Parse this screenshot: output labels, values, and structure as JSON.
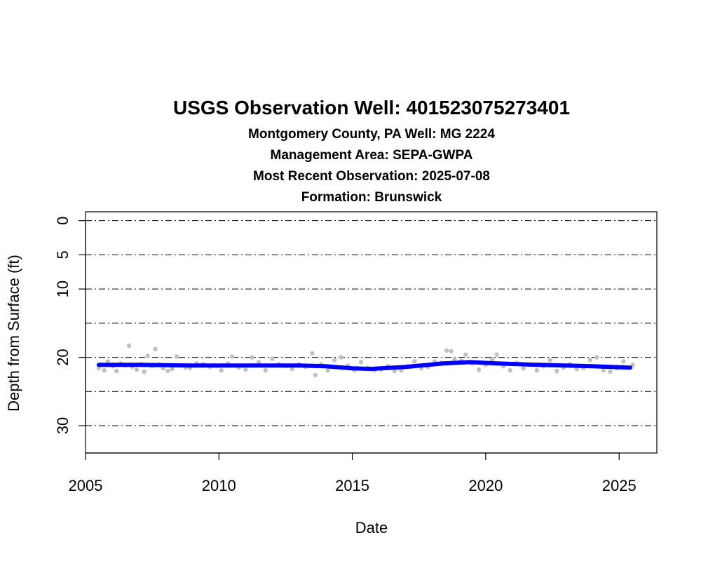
{
  "chart_data": {
    "type": "scatter",
    "title": "USGS Observation Well:  401523075273401",
    "subtitles": [
      "Montgomery County, PA   Well: MG 2224",
      "Management Area: SEPA-GWPA",
      "Most Recent Observation: 2025-07-08",
      "Formation: Brunswick"
    ],
    "xlabel": "Date",
    "ylabel": "Depth from Surface (ft)",
    "x_axis_type": "date",
    "xlim": [
      "2005-01-01",
      "2026-06-01"
    ],
    "x_ticks": [
      {
        "value": "2005-01-01",
        "label": "2005"
      },
      {
        "value": "2010-01-01",
        "label": "2010"
      },
      {
        "value": "2015-01-01",
        "label": "2015"
      },
      {
        "value": "2020-01-01",
        "label": "2020"
      },
      {
        "value": "2025-01-01",
        "label": "2025"
      }
    ],
    "ylim": [
      -1.3,
      34
    ],
    "y_reversed": true,
    "y_ticks": [
      {
        "value": 0,
        "label": "0"
      },
      {
        "value": 5,
        "label": "5"
      },
      {
        "value": 10,
        "label": "10"
      },
      {
        "value": 20,
        "label": "20"
      },
      {
        "value": 30,
        "label": "30"
      }
    ],
    "gridlines_y": [
      0,
      5,
      10,
      15,
      20,
      25,
      30
    ],
    "grid_style": "dash-dot horizontal",
    "series": [
      {
        "style": "points",
        "color": "#c0c0c0",
        "points": [
          [
            "2005-07-01",
            21.6
          ],
          [
            "2005-09-15",
            21.9
          ],
          [
            "2005-11-01",
            20.6
          ],
          [
            "2006-01-10",
            21.3
          ],
          [
            "2006-03-01",
            22.0
          ],
          [
            "2006-05-01",
            20.9
          ],
          [
            "2006-07-01",
            21.2
          ],
          [
            "2006-08-20",
            18.3
          ],
          [
            "2006-10-01",
            21.4
          ],
          [
            "2006-12-01",
            21.8
          ],
          [
            "2007-02-01",
            21.0
          ],
          [
            "2007-03-15",
            22.1
          ],
          [
            "2007-05-01",
            19.8
          ],
          [
            "2007-07-01",
            21.3
          ],
          [
            "2007-08-15",
            18.8
          ],
          [
            "2007-10-01",
            21.0
          ],
          [
            "2007-12-01",
            21.6
          ],
          [
            "2008-02-01",
            22.0
          ],
          [
            "2008-04-01",
            21.7
          ],
          [
            "2008-06-01",
            19.9
          ],
          [
            "2008-08-01",
            21.2
          ],
          [
            "2008-10-01",
            21.5
          ],
          [
            "2008-12-01",
            21.6
          ],
          [
            "2009-03-01",
            20.9
          ],
          [
            "2009-06-01",
            21.0
          ],
          [
            "2009-09-01",
            21.4
          ],
          [
            "2009-12-01",
            21.3
          ],
          [
            "2010-02-01",
            21.9
          ],
          [
            "2010-05-01",
            20.9
          ],
          [
            "2010-07-01",
            19.9
          ],
          [
            "2010-10-01",
            21.5
          ],
          [
            "2011-01-01",
            21.8
          ],
          [
            "2011-04-01",
            20.0
          ],
          [
            "2011-07-01",
            20.7
          ],
          [
            "2011-10-01",
            21.9
          ],
          [
            "2012-01-01",
            20.2
          ],
          [
            "2012-04-01",
            21.0
          ],
          [
            "2012-07-01",
            21.3
          ],
          [
            "2012-10-01",
            21.7
          ],
          [
            "2013-01-01",
            21.0
          ],
          [
            "2013-04-01",
            21.4
          ],
          [
            "2013-07-01",
            19.4
          ],
          [
            "2013-08-15",
            22.6
          ],
          [
            "2013-11-01",
            21.0
          ],
          [
            "2014-02-01",
            21.9
          ],
          [
            "2014-05-01",
            20.4
          ],
          [
            "2014-08-01",
            20.0
          ],
          [
            "2014-11-01",
            21.2
          ],
          [
            "2015-02-01",
            21.9
          ],
          [
            "2015-05-01",
            20.7
          ],
          [
            "2015-08-01",
            21.5
          ],
          [
            "2015-11-01",
            21.9
          ],
          [
            "2016-02-01",
            21.8
          ],
          [
            "2016-05-01",
            21.3
          ],
          [
            "2016-08-01",
            22.0
          ],
          [
            "2016-11-01",
            21.9
          ],
          [
            "2017-02-01",
            21.3
          ],
          [
            "2017-05-01",
            20.6
          ],
          [
            "2017-08-01",
            21.6
          ],
          [
            "2017-11-01",
            21.4
          ],
          [
            "2018-02-01",
            20.6
          ],
          [
            "2018-05-01",
            20.8
          ],
          [
            "2018-07-15",
            19.0
          ],
          [
            "2018-09-15",
            19.1
          ],
          [
            "2018-11-01",
            20.3
          ],
          [
            "2019-02-01",
            20.5
          ],
          [
            "2019-04-01",
            19.6
          ],
          [
            "2019-07-01",
            20.9
          ],
          [
            "2019-10-01",
            21.8
          ],
          [
            "2020-01-01",
            21.1
          ],
          [
            "2020-04-01",
            20.3
          ],
          [
            "2020-06-01",
            19.6
          ],
          [
            "2020-09-01",
            21.3
          ],
          [
            "2020-12-01",
            21.9
          ],
          [
            "2021-03-01",
            20.8
          ],
          [
            "2021-06-01",
            21.6
          ],
          [
            "2021-09-01",
            21.1
          ],
          [
            "2021-12-01",
            21.9
          ],
          [
            "2022-03-01",
            21.3
          ],
          [
            "2022-06-01",
            20.4
          ],
          [
            "2022-09-01",
            22.0
          ],
          [
            "2022-12-01",
            21.5
          ],
          [
            "2023-03-01",
            21.0
          ],
          [
            "2023-06-01",
            21.7
          ],
          [
            "2023-09-01",
            21.6
          ],
          [
            "2023-12-01",
            20.4
          ],
          [
            "2024-03-01",
            20.0
          ],
          [
            "2024-06-01",
            21.9
          ],
          [
            "2024-09-01",
            22.1
          ],
          [
            "2024-12-01",
            21.6
          ],
          [
            "2025-03-01",
            20.6
          ],
          [
            "2025-07-08",
            21.1
          ]
        ]
      },
      {
        "style": "line",
        "color": "#0000ff",
        "points": [
          [
            "2005-07-01",
            21.1
          ],
          [
            "2007-01-01",
            21.1
          ],
          [
            "2009-01-01",
            21.2
          ],
          [
            "2011-01-01",
            21.2
          ],
          [
            "2013-01-01",
            21.2
          ],
          [
            "2014-01-01",
            21.3
          ],
          [
            "2015-01-01",
            21.6
          ],
          [
            "2015-09-01",
            21.7
          ],
          [
            "2017-01-01",
            21.4
          ],
          [
            "2018-06-01",
            20.9
          ],
          [
            "2019-06-01",
            20.7
          ],
          [
            "2020-06-01",
            20.9
          ],
          [
            "2022-01-01",
            21.1
          ],
          [
            "2024-01-01",
            21.3
          ],
          [
            "2025-06-01",
            21.5
          ]
        ]
      }
    ]
  }
}
